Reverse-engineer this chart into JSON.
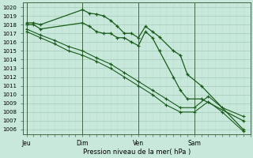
{
  "xlabel": "Pression niveau de la mer( hPa )",
  "ylim": [
    1005.5,
    1020.5
  ],
  "yticks": [
    1006,
    1007,
    1008,
    1009,
    1010,
    1011,
    1012,
    1013,
    1014,
    1015,
    1016,
    1017,
    1018,
    1019,
    1020
  ],
  "bg_color": "#c8e8dc",
  "grid_color_major": "#aacfbe",
  "grid_color_minor": "#bdddd0",
  "line_color": "#1a5c1a",
  "xtick_labels": [
    "Jeu",
    "Dim",
    "Ven",
    "Sam"
  ],
  "xtick_positions": [
    0,
    8,
    16,
    24
  ],
  "xlim": [
    -0.5,
    32
  ],
  "vline_positions": [
    0,
    8,
    16,
    24
  ],
  "line1_x": [
    0,
    1,
    2,
    8,
    9,
    10,
    11,
    12,
    13,
    14,
    15,
    16,
    17,
    18,
    19,
    21,
    22,
    23,
    25,
    31
  ],
  "line1_y": [
    1018.2,
    1018.2,
    1018.0,
    1019.7,
    1019.3,
    1019.2,
    1019.0,
    1018.5,
    1017.8,
    1017.0,
    1017.0,
    1016.5,
    1017.8,
    1017.2,
    1016.6,
    1015.0,
    1014.5,
    1012.3,
    1011.0,
    1006.0
  ],
  "line2_x": [
    0,
    1,
    2,
    8,
    9,
    10,
    11,
    12,
    13,
    14,
    15,
    16,
    17,
    18,
    19,
    21,
    22,
    23,
    25,
    31
  ],
  "line2_y": [
    1018.0,
    1018.0,
    1017.5,
    1018.2,
    1017.8,
    1017.2,
    1017.0,
    1017.0,
    1016.5,
    1016.5,
    1016.0,
    1015.6,
    1017.2,
    1016.5,
    1015.0,
    1012.0,
    1010.5,
    1009.5,
    1009.5,
    1007.0
  ],
  "line3_x": [
    0,
    2,
    4,
    6,
    8,
    10,
    12,
    14,
    16,
    18,
    20,
    22,
    24,
    26,
    28,
    31
  ],
  "line3_y": [
    1017.5,
    1016.8,
    1016.2,
    1015.5,
    1015.0,
    1014.2,
    1013.5,
    1012.5,
    1011.5,
    1010.5,
    1009.5,
    1008.5,
    1008.5,
    1009.8,
    1008.5,
    1007.5
  ],
  "line4_x": [
    0,
    2,
    4,
    6,
    8,
    10,
    12,
    14,
    16,
    18,
    20,
    22,
    24,
    26,
    28,
    31
  ],
  "line4_y": [
    1017.2,
    1016.5,
    1015.8,
    1015.0,
    1014.5,
    1013.8,
    1013.0,
    1012.0,
    1011.0,
    1010.0,
    1008.8,
    1008.0,
    1008.0,
    1009.2,
    1008.0,
    1005.8
  ]
}
